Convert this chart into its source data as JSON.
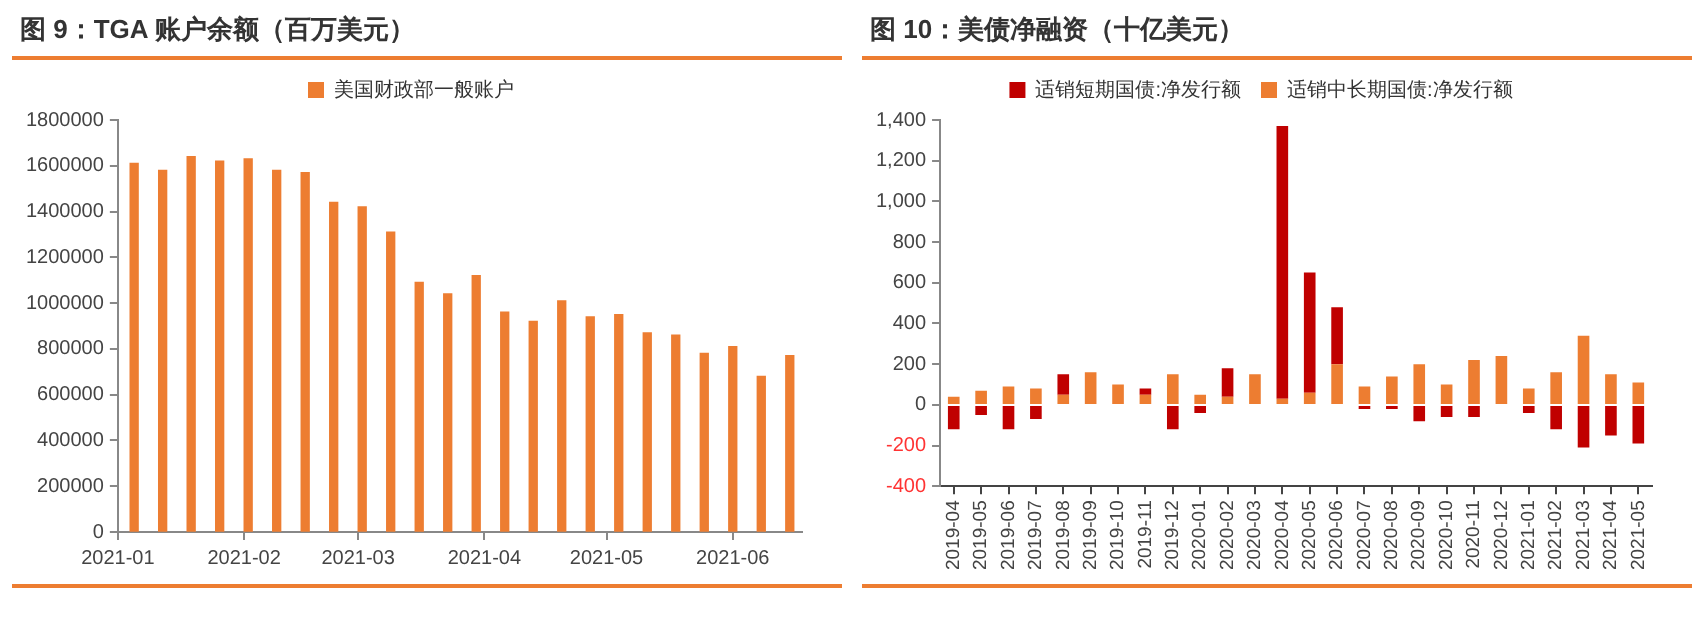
{
  "chart_data": [
    {
      "type": "bar",
      "title": "图 9：TGA 账户余额（百万美元）",
      "x": [
        "2021-01-05",
        "2021-01-12",
        "2021-01-19",
        "2021-01-26",
        "2021-02-02",
        "2021-02-09",
        "2021-02-16",
        "2021-02-23",
        "2021-03-02",
        "2021-03-09",
        "2021-03-16",
        "2021-03-23",
        "2021-03-30",
        "2021-04-06",
        "2021-04-13",
        "2021-04-20",
        "2021-04-27",
        "2021-05-04",
        "2021-05-11",
        "2021-05-18",
        "2021-05-25",
        "2021-06-01",
        "2021-06-08",
        "2021-06-15"
      ],
      "series": [
        {
          "name": "美国财政部一般账户",
          "color": "#ed7d31",
          "values": [
            1610000,
            1580000,
            1640000,
            1620000,
            1630000,
            1580000,
            1570000,
            1440000,
            1420000,
            1310000,
            1090000,
            1040000,
            1120000,
            960000,
            920000,
            1010000,
            940000,
            950000,
            870000,
            860000,
            780000,
            810000,
            680000,
            770000
          ]
        }
      ],
      "xlim": [
        "2021-01-01",
        "2021-06-18"
      ],
      "xticks": [
        "2021-01",
        "2021-02",
        "2021-03",
        "2021-04",
        "2021-05",
        "2021-06"
      ],
      "ylim": [
        0,
        1800000
      ],
      "yticks": [
        0,
        200000,
        400000,
        600000,
        800000,
        1000000,
        1200000,
        1400000,
        1600000,
        1800000
      ],
      "grid": false,
      "legend": "top"
    },
    {
      "type": "bar",
      "title": "图 10：美债净融资（十亿美元）",
      "categories": [
        "2019-04",
        "2019-05",
        "2019-06",
        "2019-07",
        "2019-08",
        "2019-09",
        "2019-10",
        "2019-11",
        "2019-12",
        "2020-01",
        "2020-02",
        "2020-03",
        "2020-04",
        "2020-05",
        "2020-06",
        "2020-07",
        "2020-08",
        "2020-09",
        "2020-10",
        "2020-11",
        "2020-12",
        "2021-01",
        "2021-02",
        "2021-03",
        "2021-04",
        "2021-05"
      ],
      "stacked": true,
      "series": [
        {
          "name": "适销中长期国债:净发行额",
          "color": "#ed7d31",
          "values": [
            40,
            70,
            90,
            80,
            50,
            160,
            100,
            50,
            150,
            50,
            40,
            150,
            30,
            60,
            200,
            90,
            140,
            200,
            100,
            220,
            240,
            80,
            160,
            340,
            150,
            110
          ]
        },
        {
          "name": "适销短期国债:净发行额",
          "color": "#c00000",
          "values": [
            -120,
            -50,
            -120,
            -70,
            100,
            0,
            0,
            30,
            -120,
            -40,
            140,
            0,
            1340,
            590,
            280,
            -20,
            -20,
            -80,
            -60,
            -60,
            0,
            -40,
            -120,
            -210,
            -150,
            -190
          ]
        }
      ],
      "ylim": [
        -400,
        1400
      ],
      "yticks": [
        -400,
        -200,
        0,
        200,
        400,
        600,
        800,
        {
          "value": 1000,
          "label": "1,000"
        },
        {
          "value": 1200,
          "label": "1,200"
        },
        {
          "value": 1400,
          "label": "1,400"
        }
      ],
      "grid": false,
      "legend": "top"
    }
  ]
}
